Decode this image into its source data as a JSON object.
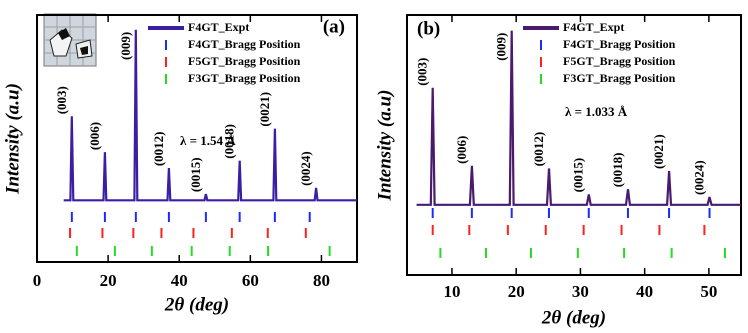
{
  "chart_data": [
    {
      "type": "line",
      "panel_label": "(a)",
      "x_label": "2θ (deg)",
      "y_label": "Intensity (a.u)",
      "annotation": "λ = 1.54 Å",
      "xlim": [
        0,
        90
      ],
      "xticks": [
        0,
        20,
        40,
        60,
        80
      ],
      "ylim": [
        0,
        1
      ],
      "legend": "upper right",
      "peak_labels": [
        "(003)",
        "(006)",
        "(009)",
        "(0012)",
        "(0015)",
        "(0018)",
        "(0021)",
        "(0024)"
      ],
      "series": [
        {
          "name": "F4GT_Expt",
          "color": "#3b1fa3",
          "x": [
            7.5,
            9.4,
            9.8,
            10.2,
            18.7,
            19.1,
            19.5,
            27.4,
            27.8,
            28.2,
            36.7,
            37.1,
            37.5,
            47.1,
            47.5,
            47.9,
            56.6,
            57.0,
            57.4,
            66.5,
            66.9,
            67.3,
            78.1,
            78.5,
            78.9,
            90
          ],
          "values": [
            0.25,
            0.25,
            0.59,
            0.25,
            0.25,
            0.445,
            0.25,
            0.25,
            0.94,
            0.25,
            0.25,
            0.38,
            0.25,
            0.25,
            0.275,
            0.25,
            0.25,
            0.41,
            0.25,
            0.25,
            0.54,
            0.25,
            0.25,
            0.3,
            0.25,
            0.25
          ]
        },
        {
          "name": "F4GT_Bragg Position",
          "color": "#1a2cff",
          "x": [
            9.8,
            19.1,
            27.8,
            37.1,
            47.5,
            57.0,
            66.9,
            76.7
          ]
        },
        {
          "name": "F5GT_Bragg Position",
          "color": "#ff2020",
          "x": [
            9.3,
            18.4,
            27.1,
            35.0,
            44.0,
            54.8,
            64.9,
            75.6
          ]
        },
        {
          "name": "F3GT_Bragg Position",
          "color": "#22dd22",
          "x": [
            11.2,
            21.9,
            32.3,
            43.5,
            54.2,
            65.0,
            82.3
          ]
        }
      ]
    },
    {
      "type": "line",
      "panel_label": "(b)",
      "x_label": "2θ (deg)",
      "y_label": "Intensity (a.u)",
      "annotation": "λ = 1.033 Å",
      "xlim": [
        3,
        55
      ],
      "xticks": [
        10,
        20,
        30,
        40,
        50
      ],
      "ylim": [
        0,
        1
      ],
      "legend": "upper right",
      "peak_labels": [
        "(003)",
        "(006)",
        "(009)",
        "(0012)",
        "(0015)",
        "(0018)",
        "(0021)",
        "(0024)"
      ],
      "series": [
        {
          "name": "F4GT_Expt",
          "color": "#4a1a6e",
          "x": [
            4.5,
            6.7,
            7.0,
            7.3,
            12.8,
            13.1,
            13.4,
            19.0,
            19.3,
            19.6,
            24.8,
            25.1,
            25.4,
            31.0,
            31.3,
            31.6,
            37.1,
            37.4,
            37.7,
            43.5,
            43.8,
            44.1,
            49.8,
            50.1,
            50.4,
            55
          ],
          "values": [
            0.27,
            0.27,
            0.72,
            0.27,
            0.27,
            0.42,
            0.27,
            0.27,
            0.94,
            0.27,
            0.27,
            0.41,
            0.27,
            0.27,
            0.31,
            0.27,
            0.27,
            0.33,
            0.27,
            0.27,
            0.4,
            0.27,
            0.27,
            0.3,
            0.27,
            0.27
          ]
        },
        {
          "name": "F4GT_Bragg Position",
          "color": "#1a2cff",
          "x": [
            7.0,
            13.1,
            19.3,
            25.1,
            31.3,
            37.4,
            43.8,
            50.1
          ]
        },
        {
          "name": "F5GT_Bragg Position",
          "color": "#ff2020",
          "x": [
            7.0,
            12.7,
            18.7,
            24.6,
            30.5,
            36.4,
            42.3,
            49.3
          ]
        },
        {
          "name": "F3GT_Bragg Position",
          "color": "#22dd22",
          "x": [
            8.2,
            15.3,
            22.3,
            29.6,
            36.8,
            44.2,
            52.5
          ]
        }
      ]
    }
  ]
}
